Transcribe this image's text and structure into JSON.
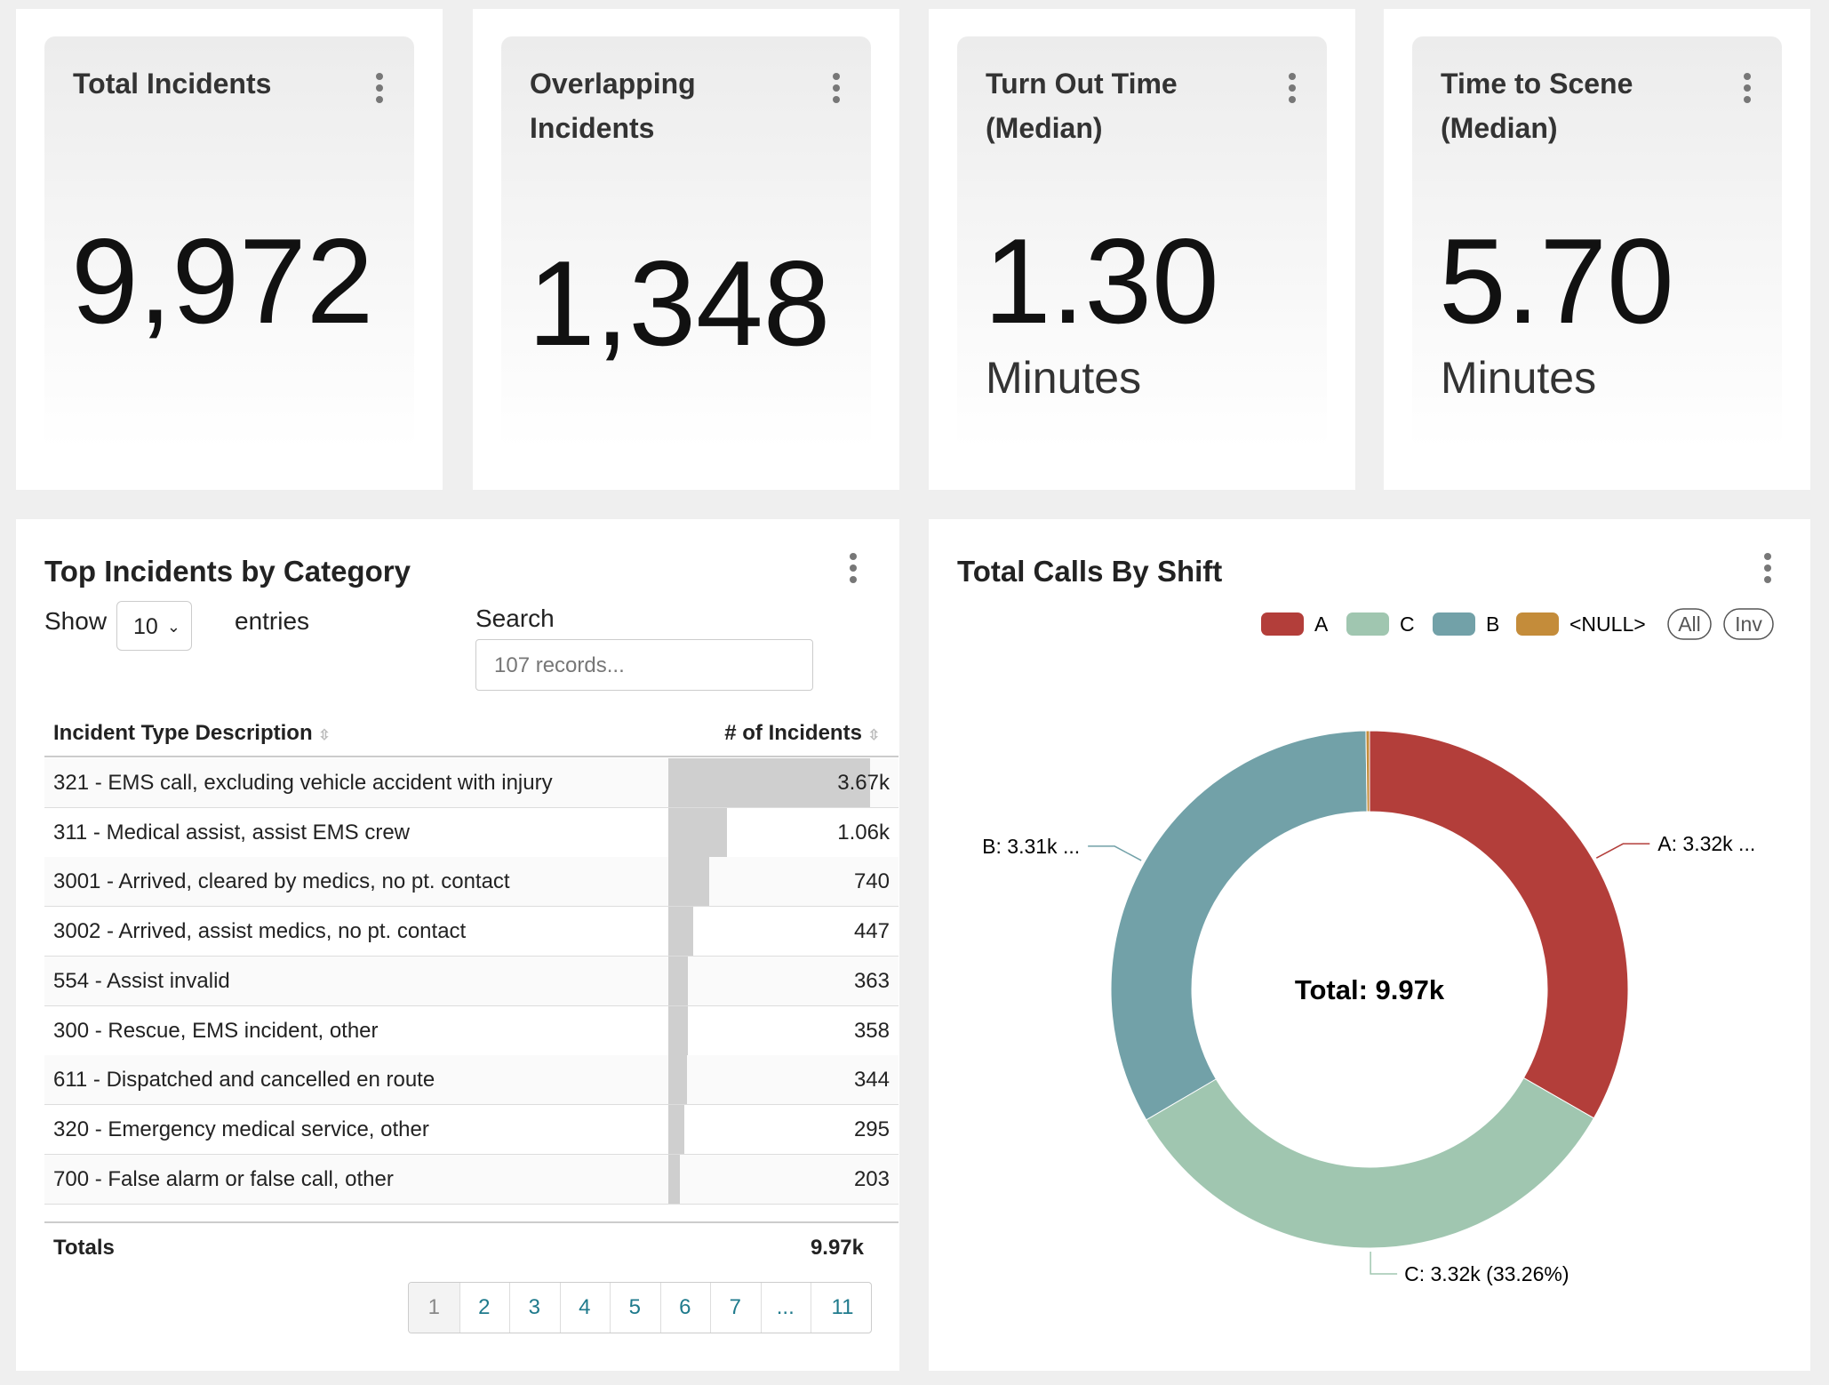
{
  "kpis": [
    {
      "title": "Total Incidents",
      "value": "9,972"
    },
    {
      "title": "Overlapping Incidents",
      "value": "1,348"
    },
    {
      "title": "Turn Out Time (Median)",
      "value": "1.30",
      "unit": "Minutes"
    },
    {
      "title": "Time to Scene (Median)",
      "value": "5.70",
      "unit": "Minutes"
    }
  ],
  "table": {
    "title": "Top Incidents by Category",
    "show_label": "Show",
    "show_value": "10",
    "entries_label": "entries",
    "search_label": "Search",
    "search_placeholder": "107 records...",
    "columns": [
      "Incident Type Description",
      "# of Incidents"
    ],
    "rows": [
      {
        "description": "321 - EMS call, excluding vehicle accident with injury",
        "count": {
          "value": 3670,
          "label": "3.67k"
        }
      },
      {
        "description": "311 - Medical assist, assist EMS crew",
        "count": {
          "value": 1060,
          "label": "1.06k"
        }
      },
      {
        "description": "3001 - Arrived, cleared by medics, no pt. contact",
        "count": 740
      },
      {
        "description": "3002 - Arrived, assist medics, no pt. contact",
        "count": 447
      },
      {
        "description": "554 - Assist invalid",
        "count": 363
      },
      {
        "description": "300 - Rescue, EMS incident, other",
        "count": 358
      },
      {
        "description": "611 - Dispatched and cancelled en route",
        "count": 344
      },
      {
        "description": "320 - Emergency medical service, other",
        "count": 295
      },
      {
        "description": "700 - False alarm or false call, other",
        "count": 203
      }
    ],
    "totals_label": "Totals",
    "totals_value": "9.97k",
    "pages": [
      "1",
      "2",
      "3",
      "4",
      "5",
      "6",
      "7",
      "...",
      "11"
    ]
  },
  "chart_data": {
    "type": "pie",
    "title": "Total Calls By Shift",
    "categories": [
      "A",
      "C",
      "B",
      "<NULL>"
    ],
    "values": [
      3320,
      3320,
      3310,
      22
    ],
    "value_labels": [
      "A: 3.32k ...",
      "C: 3.32k (33.26%)",
      "B: 3.31k ...",
      null
    ],
    "colors": [
      "#b33e3a",
      "#a0c6b0",
      "#72a1a8",
      "#c48c3a"
    ],
    "center_label": "Total: 9.97k",
    "legend_buttons": [
      "All",
      "Inv"
    ]
  }
}
